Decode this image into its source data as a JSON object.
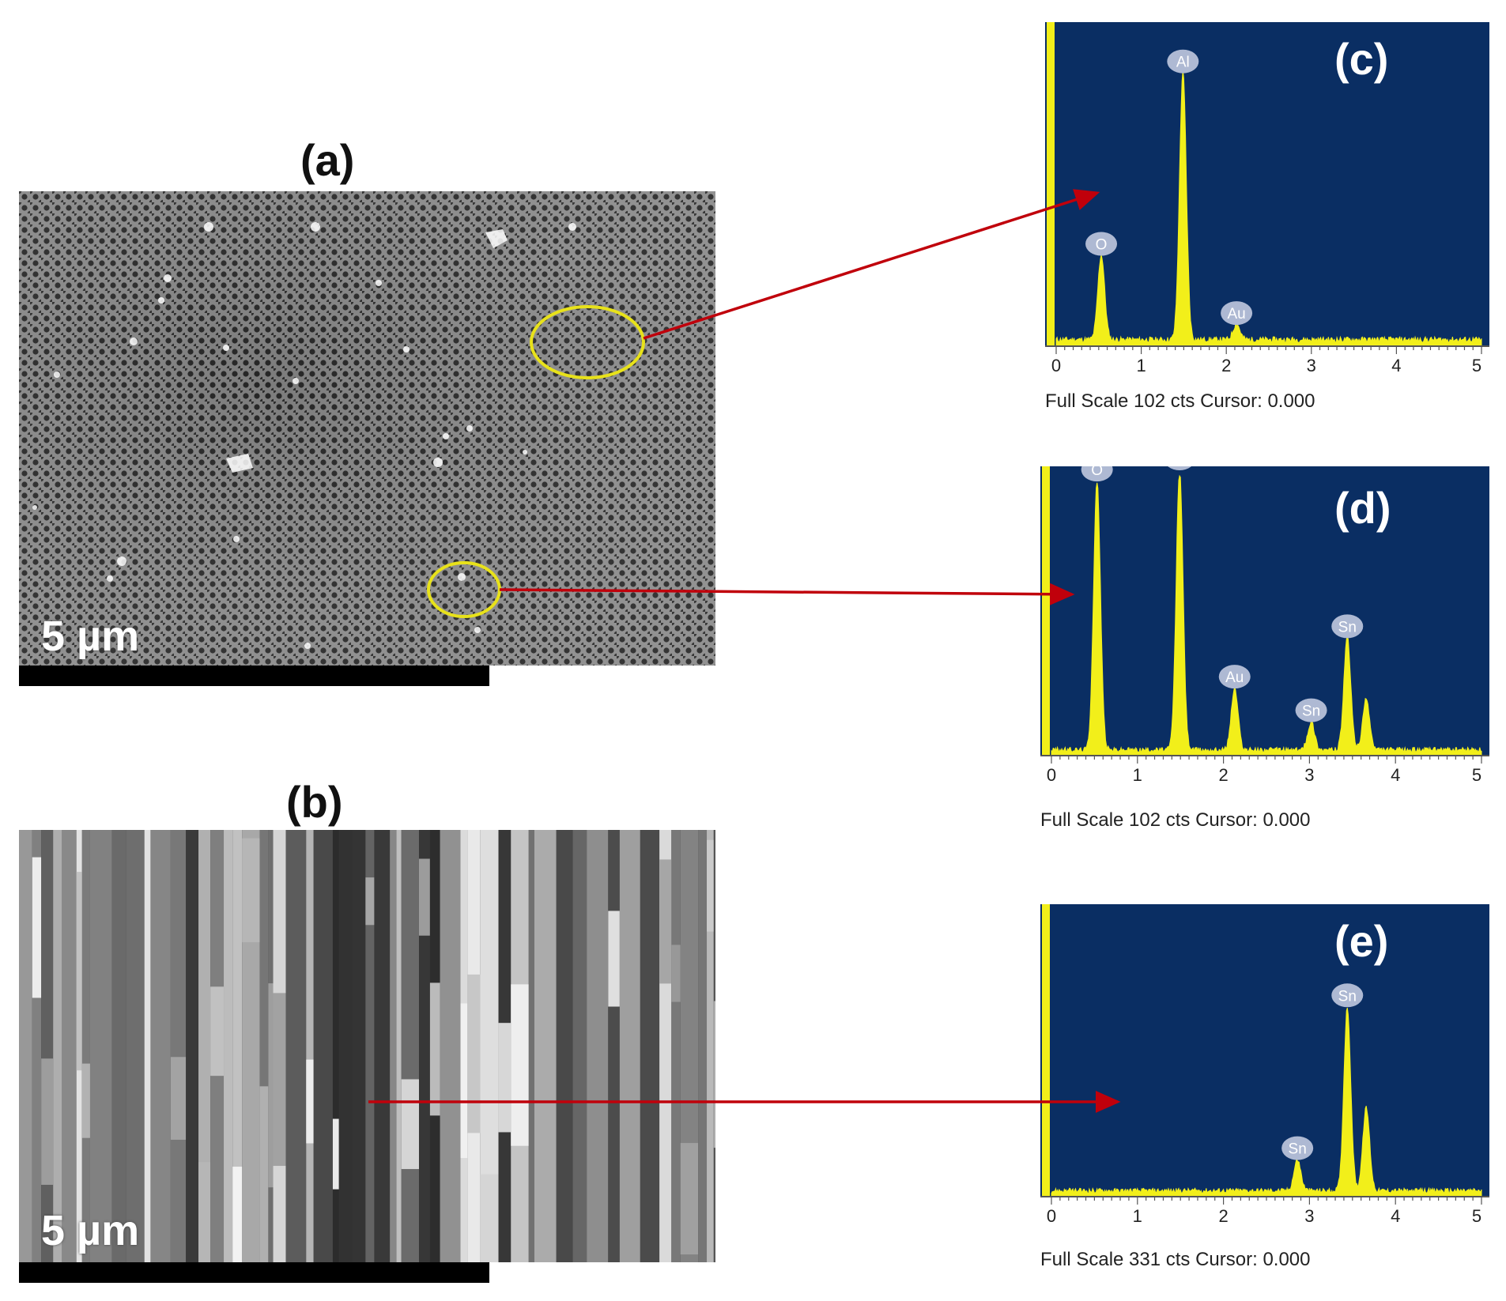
{
  "figure": {
    "panel_a": {
      "label": "(a)",
      "scale_text": "5 µm"
    },
    "panel_b": {
      "label": "(b)",
      "scale_text": "5 µm"
    }
  },
  "colors": {
    "eds_background": "#0a2e63",
    "peak_fill": "#f2ef1a",
    "arrow": "#c0000b",
    "circle": "#e8e21a"
  },
  "chart_data": [
    {
      "type": "area",
      "panel": "(c)",
      "xlim": [
        0,
        5
      ],
      "x_ticks": [
        "0",
        "1",
        "2",
        "3",
        "4",
        "5"
      ],
      "footer": "Full Scale 102 cts Cursor: 0.000",
      "peaks": [
        {
          "label": "O",
          "x": 0.53,
          "height": 0.27
        },
        {
          "label": "Al",
          "x": 1.49,
          "height": 0.85
        },
        {
          "label": "Au",
          "x": 2.12,
          "height": 0.05
        }
      ]
    },
    {
      "type": "area",
      "panel": "(d)",
      "xlim": [
        0,
        5
      ],
      "x_ticks": [
        "0",
        "1",
        "2",
        "3",
        "4",
        "5"
      ],
      "footer": "Full Scale 102 cts Cursor: 0.000",
      "peaks": [
        {
          "label": "O",
          "x": 0.53,
          "height": 0.96
        },
        {
          "label": "Al",
          "x": 1.49,
          "height": 1.0
        },
        {
          "label": "Au",
          "x": 2.13,
          "height": 0.22
        },
        {
          "label": "Sn",
          "x": 3.02,
          "height": 0.1
        },
        {
          "label": "Sn",
          "x": 3.44,
          "height": 0.4
        }
      ]
    },
    {
      "type": "area",
      "panel": "(e)",
      "xlim": [
        0,
        5
      ],
      "x_ticks": [
        "0",
        "1",
        "2",
        "3",
        "4",
        "5"
      ],
      "footer": "Full Scale 331 cts Cursor: 0.000",
      "peaks": [
        {
          "label": "Sn",
          "x": 2.86,
          "height": 0.11
        },
        {
          "label": "Sn",
          "x": 3.44,
          "height": 0.65
        }
      ]
    }
  ]
}
